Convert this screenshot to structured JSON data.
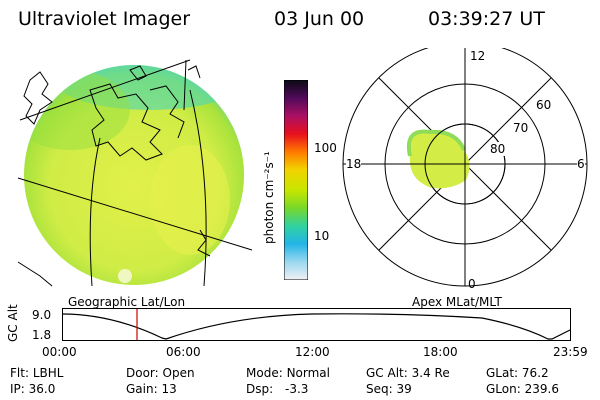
{
  "header": {
    "title": "Ultraviolet Imager",
    "date": "03 Jun 00",
    "time": "03:39:27 UT"
  },
  "colorbar": {
    "unit_label": "photon cm⁻²s⁻¹",
    "tick_labels": [
      "100",
      "10"
    ],
    "colors": [
      "#0a0a14",
      "#500a5a",
      "#aa1064",
      "#e8101e",
      "#ff7a00",
      "#f2d400",
      "#c8e600",
      "#78d82a",
      "#30d2a0",
      "#22b4e6",
      "#9cd8f0",
      "#f0f0f4"
    ]
  },
  "geo_panel": {
    "caption": "Geographic Lat/Lon",
    "disk_color": "#d2ee46",
    "rim_color": "#5ad8a8"
  },
  "polar_panel": {
    "caption": "Apex MLat/MLT",
    "mlt_labels": [
      "12",
      "18",
      "6",
      "0"
    ],
    "lat_labels": [
      "60",
      "70",
      "80"
    ]
  },
  "altitude_plot": {
    "ylabel": "GC Alt",
    "yticks": [
      "9.0",
      "1.8"
    ],
    "xticks": [
      "00:00",
      "06:00",
      "12:00",
      "18:00",
      "23:59"
    ],
    "marker_color": "#d00000"
  },
  "footer": {
    "row1": [
      {
        "key": "Flt:",
        "value": "LBHL"
      },
      {
        "key": "Door:",
        "value": "Open"
      },
      {
        "key": "Mode:",
        "value": "Normal"
      },
      {
        "key": "GC Alt:",
        "value": "3.4 Re"
      },
      {
        "key": "GLat:",
        "value": "76.2"
      }
    ],
    "row2": [
      {
        "key": "IP:",
        "value": "36.0"
      },
      {
        "key": "Gain:",
        "value": "13"
      },
      {
        "key": "Dsp:",
        "value": "-3.3"
      },
      {
        "key": "Seq:",
        "value": "39"
      },
      {
        "key": "GLon:",
        "value": "239.6"
      }
    ]
  }
}
